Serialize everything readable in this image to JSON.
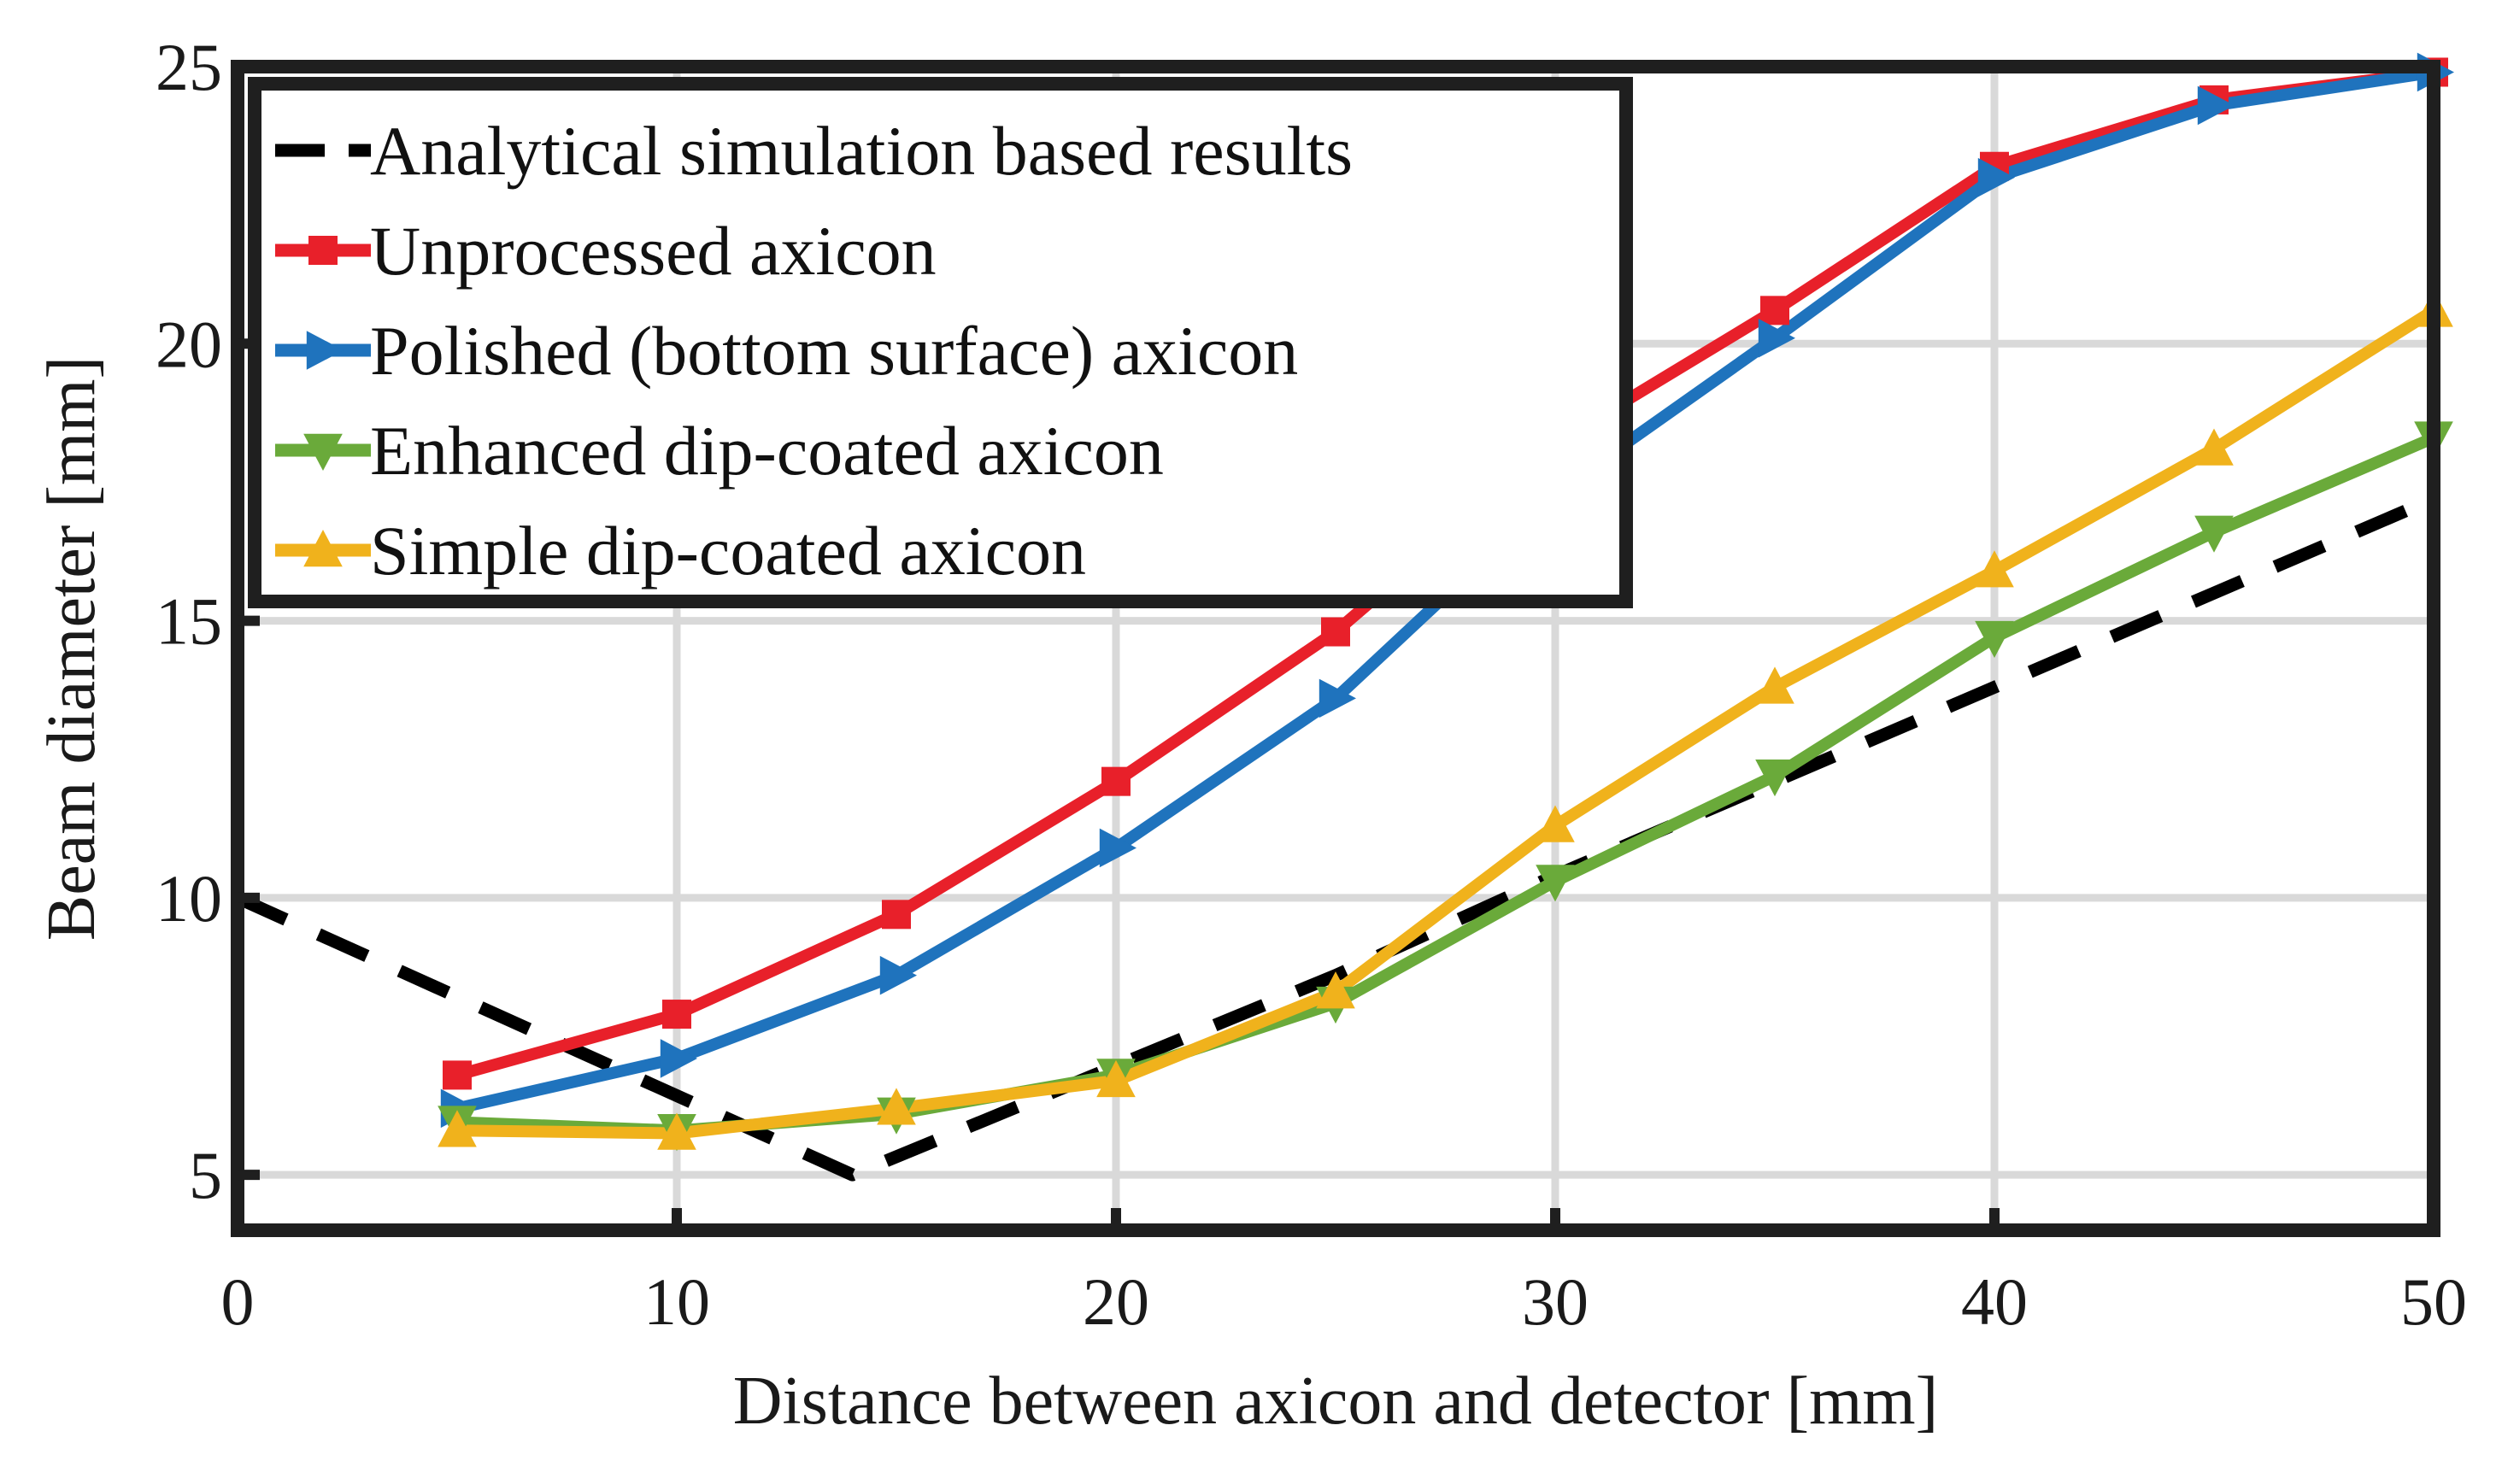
{
  "chart_data": {
    "type": "line",
    "title": "",
    "xlabel": "Distance between axicon and detector [mm]",
    "ylabel": "Beam diameter [mm]",
    "xlim": [
      0,
      50
    ],
    "ylim": [
      4,
      25
    ],
    "xticks": [
      0,
      10,
      20,
      30,
      40,
      50
    ],
    "yticks": [
      5,
      10,
      15,
      20,
      25
    ],
    "xtick_labels": [
      "0",
      "10",
      "20",
      "30",
      "40",
      "50"
    ],
    "ytick_labels": [
      "5",
      "10",
      "15",
      "20",
      "25"
    ],
    "grid": true,
    "legend_position": "top-left",
    "series": [
      {
        "name": "Analytical simulation based results",
        "color": "#000000",
        "style": "dashed",
        "marker": "none",
        "x": [
          0,
          14,
          25,
          30,
          35,
          40,
          45,
          50
        ],
        "y": [
          10,
          5,
          8.6,
          10.4,
          12.1,
          13.8,
          15.5,
          17.2
        ]
      },
      {
        "name": "Unprocessed axicon",
        "color": "#e8202a",
        "style": "solid",
        "marker": "square",
        "x": [
          5,
          10,
          15,
          20,
          25,
          30,
          35,
          40,
          45,
          50
        ],
        "y": [
          6.8,
          7.9,
          9.7,
          12.1,
          14.8,
          18.2,
          20.6,
          23.2,
          24.4,
          24.9
        ]
      },
      {
        "name": "Polished (bottom surface) axicon",
        "color": "#1f73bd",
        "style": "solid",
        "marker": "triangle-right",
        "x": [
          5,
          10,
          15,
          20,
          25,
          30,
          35,
          40,
          45,
          50
        ],
        "y": [
          6.2,
          7.1,
          8.6,
          10.9,
          13.6,
          17.3,
          20.1,
          23.0,
          24.3,
          24.9
        ]
      },
      {
        "name": "Enhanced dip-coated axicon",
        "color": "#6aaa3a",
        "style": "solid",
        "marker": "triangle-down",
        "x": [
          5,
          10,
          15,
          20,
          25,
          30,
          35,
          40,
          45,
          50
        ],
        "y": [
          5.95,
          5.8,
          6.1,
          6.8,
          8.1,
          10.3,
          12.2,
          14.7,
          16.6,
          18.3
        ]
      },
      {
        "name": "Simple dip-coated axicon",
        "color": "#f0b21c",
        "style": "solid",
        "marker": "triangle-up",
        "x": [
          5,
          10,
          15,
          20,
          25,
          30,
          35,
          40,
          45,
          50
        ],
        "y": [
          5.8,
          5.75,
          6.2,
          6.7,
          8.3,
          11.3,
          13.8,
          15.9,
          18.1,
          20.6
        ]
      }
    ]
  }
}
